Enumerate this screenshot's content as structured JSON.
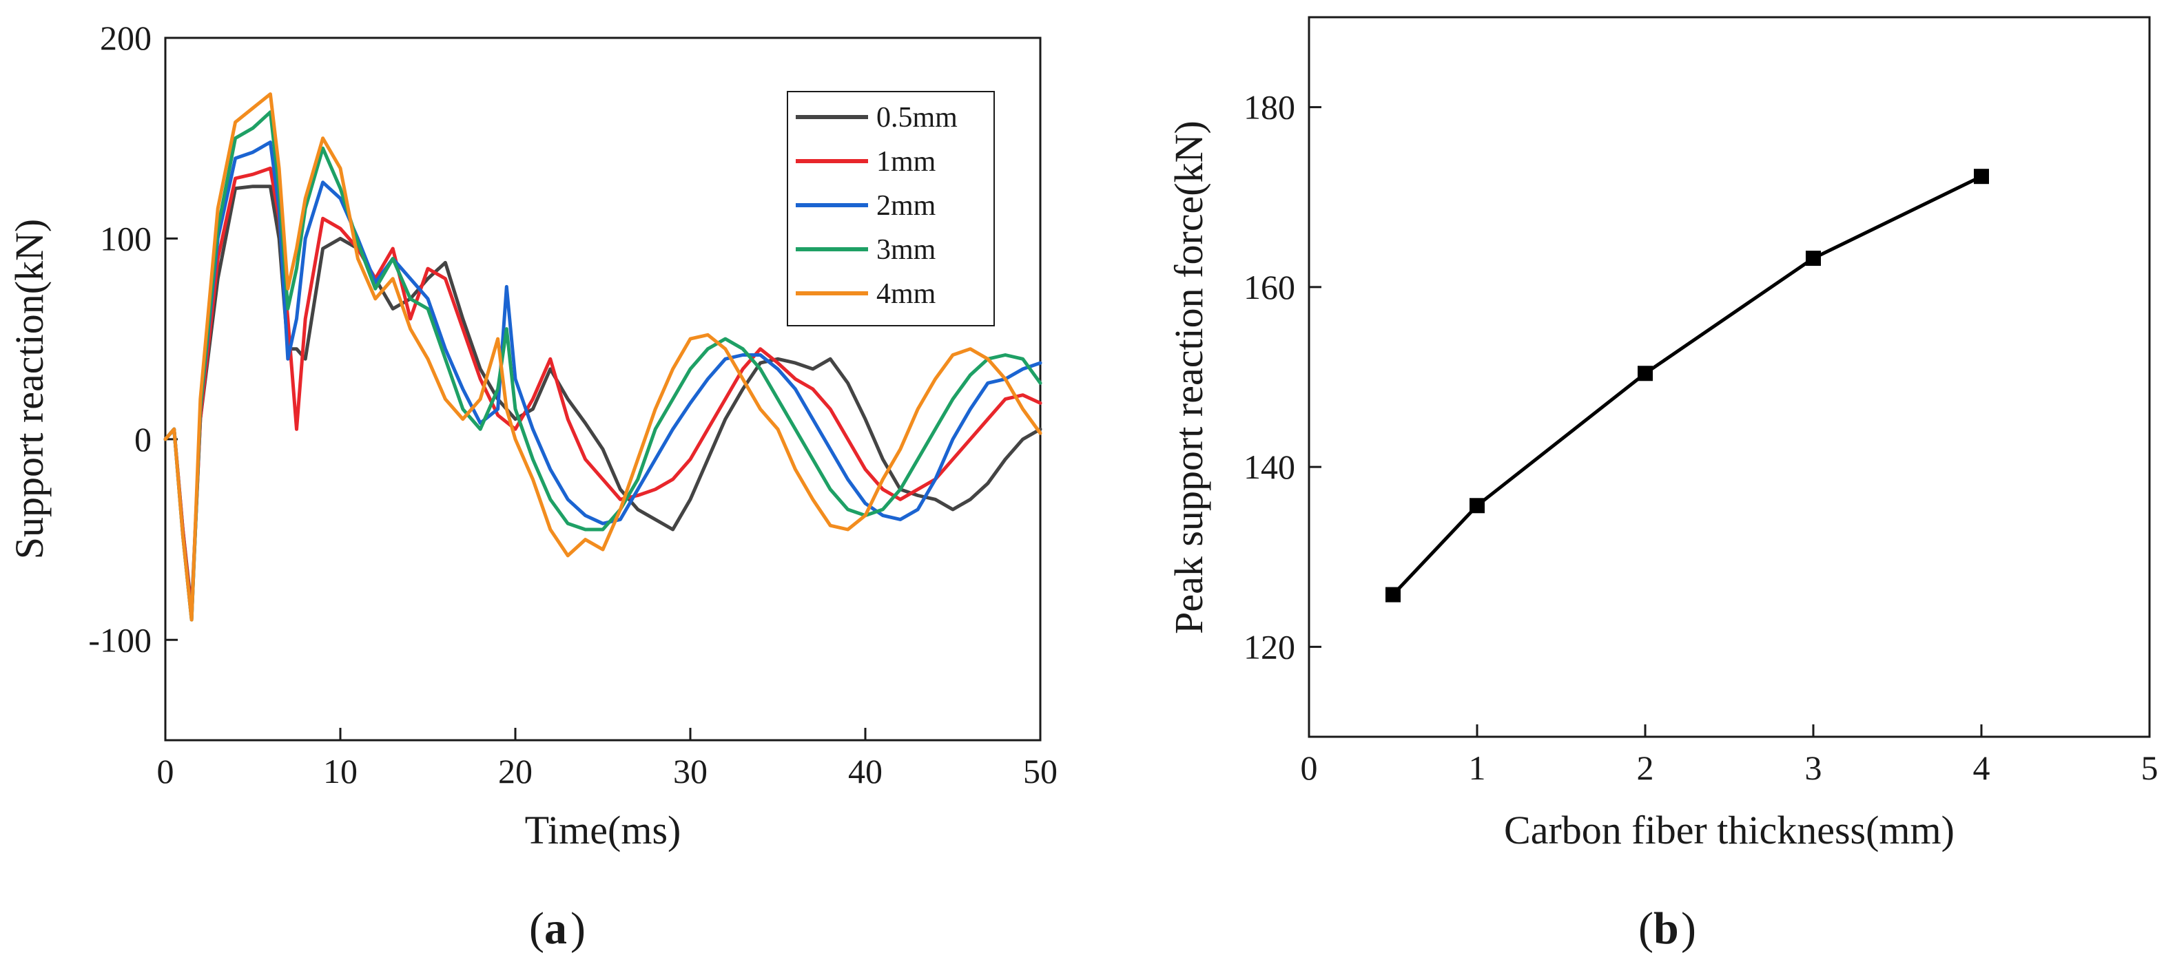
{
  "chart_data": [
    {
      "type": "line",
      "panel_label": "a",
      "xlabel": "Time(ms)",
      "ylabel": "Support reaction(kN)",
      "xlim": [
        0,
        50
      ],
      "ylim": [
        -150,
        200
      ],
      "xticks": [
        0,
        10,
        20,
        30,
        40,
        50
      ],
      "yticks": [
        -100,
        0,
        100,
        200
      ],
      "grid": false,
      "legend_position": "top-right",
      "series": [
        {
          "name": "0.5mm",
          "color": "#444444",
          "x": [
            0,
            0.5,
            1,
            1.5,
            2,
            3,
            4,
            5,
            6,
            6.5,
            7,
            7.5,
            8,
            9,
            10,
            11,
            12,
            13,
            14,
            15,
            16,
            17,
            18,
            19,
            20,
            21,
            22,
            23,
            24,
            25,
            26,
            27,
            28,
            29,
            30,
            31,
            32,
            33,
            34,
            35,
            36,
            37,
            38,
            39,
            40,
            41,
            42,
            43,
            44,
            45,
            46,
            47,
            48,
            49,
            50
          ],
          "y": [
            0,
            5,
            -45,
            -85,
            10,
            80,
            125,
            126,
            126,
            100,
            45,
            45,
            40,
            95,
            100,
            95,
            80,
            65,
            70,
            80,
            88,
            60,
            35,
            20,
            10,
            15,
            35,
            20,
            8,
            -5,
            -25,
            -35,
            -40,
            -45,
            -30,
            -10,
            10,
            25,
            38,
            40,
            38,
            35,
            40,
            28,
            10,
            -10,
            -25,
            -28,
            -30,
            -35,
            -30,
            -22,
            -10,
            0,
            5
          ]
        },
        {
          "name": "1mm",
          "color": "#e8262b",
          "x": [
            0,
            0.5,
            1,
            1.5,
            2,
            3,
            4,
            5,
            6,
            6.5,
            7,
            7.5,
            8,
            9,
            10,
            11,
            12,
            13,
            14,
            15,
            16,
            17,
            18,
            19,
            20,
            21,
            22,
            23,
            24,
            25,
            26,
            27,
            28,
            29,
            30,
            31,
            32,
            33,
            34,
            35,
            36,
            37,
            38,
            39,
            40,
            41,
            42,
            43,
            44,
            45,
            46,
            47,
            48,
            49,
            50
          ],
          "y": [
            0,
            5,
            -45,
            -87,
            10,
            90,
            130,
            132,
            135,
            110,
            60,
            5,
            60,
            110,
            105,
            95,
            80,
            95,
            60,
            85,
            80,
            55,
            30,
            12,
            5,
            20,
            40,
            10,
            -10,
            -20,
            -30,
            -28,
            -25,
            -20,
            -10,
            5,
            20,
            35,
            45,
            38,
            30,
            25,
            15,
            0,
            -15,
            -25,
            -30,
            -25,
            -20,
            -10,
            0,
            10,
            20,
            22,
            18
          ]
        },
        {
          "name": "2mm",
          "color": "#1b64d1",
          "x": [
            0,
            0.5,
            1,
            1.5,
            2,
            3,
            4,
            5,
            6,
            6.5,
            7,
            7.5,
            8,
            9,
            10,
            11,
            12,
            13,
            14,
            15,
            16,
            17,
            18,
            19,
            19.5,
            20,
            21,
            22,
            23,
            24,
            25,
            26,
            27,
            28,
            29,
            30,
            31,
            32,
            33,
            34,
            35,
            36,
            37,
            38,
            39,
            40,
            41,
            42,
            43,
            44,
            45,
            46,
            47,
            48,
            49,
            50
          ],
          "y": [
            0,
            5,
            -48,
            -90,
            15,
            100,
            140,
            143,
            148,
            115,
            40,
            60,
            100,
            128,
            120,
            100,
            78,
            90,
            80,
            70,
            45,
            25,
            8,
            15,
            76,
            30,
            5,
            -15,
            -30,
            -38,
            -42,
            -40,
            -25,
            -10,
            5,
            18,
            30,
            40,
            42,
            42,
            35,
            25,
            10,
            -5,
            -20,
            -32,
            -38,
            -40,
            -35,
            -20,
            0,
            15,
            28,
            30,
            35,
            38
          ]
        },
        {
          "name": "3mm",
          "color": "#1ea065",
          "x": [
            0,
            0.5,
            1,
            1.5,
            2,
            3,
            4,
            5,
            6,
            6.5,
            7,
            7.5,
            8,
            9,
            10,
            11,
            12,
            13,
            14,
            15,
            16,
            17,
            18,
            19,
            19.5,
            20,
            21,
            22,
            23,
            24,
            25,
            26,
            27,
            28,
            29,
            30,
            31,
            32,
            33,
            34,
            35,
            36,
            37,
            38,
            39,
            40,
            41,
            42,
            43,
            44,
            45,
            46,
            47,
            48,
            49,
            50
          ],
          "y": [
            0,
            5,
            -48,
            -90,
            15,
            105,
            150,
            155,
            163,
            125,
            65,
            85,
            115,
            145,
            125,
            98,
            75,
            90,
            70,
            65,
            40,
            15,
            5,
            25,
            55,
            15,
            -10,
            -30,
            -42,
            -45,
            -45,
            -35,
            -20,
            5,
            20,
            35,
            45,
            50,
            45,
            35,
            20,
            5,
            -10,
            -25,
            -35,
            -38,
            -35,
            -25,
            -10,
            5,
            20,
            32,
            40,
            42,
            40,
            28
          ]
        },
        {
          "name": "4mm",
          "color": "#f28c1e",
          "x": [
            0,
            0.5,
            1,
            1.5,
            2,
            3,
            4,
            5,
            6,
            6.5,
            7,
            7.5,
            8,
            9,
            10,
            11,
            12,
            13,
            14,
            15,
            16,
            17,
            18,
            19,
            19.5,
            20,
            21,
            22,
            23,
            24,
            25,
            26,
            27,
            28,
            29,
            30,
            31,
            32,
            33,
            34,
            35,
            36,
            37,
            38,
            39,
            40,
            41,
            42,
            43,
            44,
            45,
            46,
            47,
            48,
            49,
            50
          ],
          "y": [
            0,
            5,
            -48,
            -90,
            20,
            115,
            158,
            165,
            172,
            135,
            75,
            95,
            120,
            150,
            135,
            90,
            70,
            80,
            55,
            40,
            20,
            10,
            20,
            50,
            15,
            0,
            -20,
            -45,
            -58,
            -50,
            -55,
            -35,
            -10,
            15,
            35,
            50,
            52,
            45,
            30,
            15,
            5,
            -15,
            -30,
            -43,
            -45,
            -38,
            -20,
            -5,
            15,
            30,
            42,
            45,
            40,
            30,
            15,
            3
          ]
        }
      ]
    },
    {
      "type": "line",
      "panel_label": "b",
      "xlabel": "Carbon fiber thickness(mm)",
      "ylabel": "Peak support reaction force(kN)",
      "xlim": [
        0,
        5
      ],
      "ylim": [
        110,
        190
      ],
      "xticks": [
        0,
        1,
        2,
        3,
        4,
        5
      ],
      "yticks": [
        120,
        140,
        160,
        180
      ],
      "grid": false,
      "markers": "square",
      "series": [
        {
          "color": "#000000",
          "x": [
            0.5,
            1,
            2,
            3,
            4
          ],
          "y": [
            125.8,
            135.7,
            150.4,
            163.2,
            172.3
          ]
        }
      ]
    }
  ]
}
